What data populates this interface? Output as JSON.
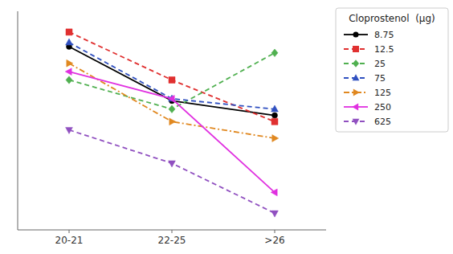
{
  "chart_data": {
    "type": "line",
    "categories": [
      "20-21",
      "22-25",
      ">26"
    ],
    "series": [
      {
        "name": "8.75",
        "color": "#000000",
        "line_style": "solid",
        "marker": "circle",
        "values": [
          88,
          62,
          55
        ]
      },
      {
        "name": "12.5",
        "color": "#e03030",
        "line_style": "dashed",
        "marker": "square",
        "values": [
          95,
          72,
          52
        ]
      },
      {
        "name": "25",
        "color": "#50b050",
        "line_style": "dashed",
        "marker": "diamond",
        "values": [
          72,
          58,
          85
        ]
      },
      {
        "name": "75",
        "color": "#3050c0",
        "line_style": "dashed",
        "marker": "triangle-up",
        "values": [
          90,
          63,
          58
        ]
      },
      {
        "name": "125",
        "color": "#e08820",
        "line_style": "dashdot",
        "marker": "triangle-right",
        "values": [
          80,
          52,
          44
        ]
      },
      {
        "name": "250",
        "color": "#e030e0",
        "line_style": "solid",
        "marker": "triangle-left",
        "values": [
          76,
          63,
          18
        ]
      },
      {
        "name": "625",
        "color": "#9050c0",
        "line_style": "dashed",
        "marker": "triangle-down",
        "values": [
          48,
          32,
          8
        ]
      }
    ],
    "legend_title": "Cloprostenol  (μg)",
    "legend": "right",
    "ylim": [
      0,
      105
    ],
    "yticks": [],
    "tick_labels": "x",
    "grid": false
  }
}
